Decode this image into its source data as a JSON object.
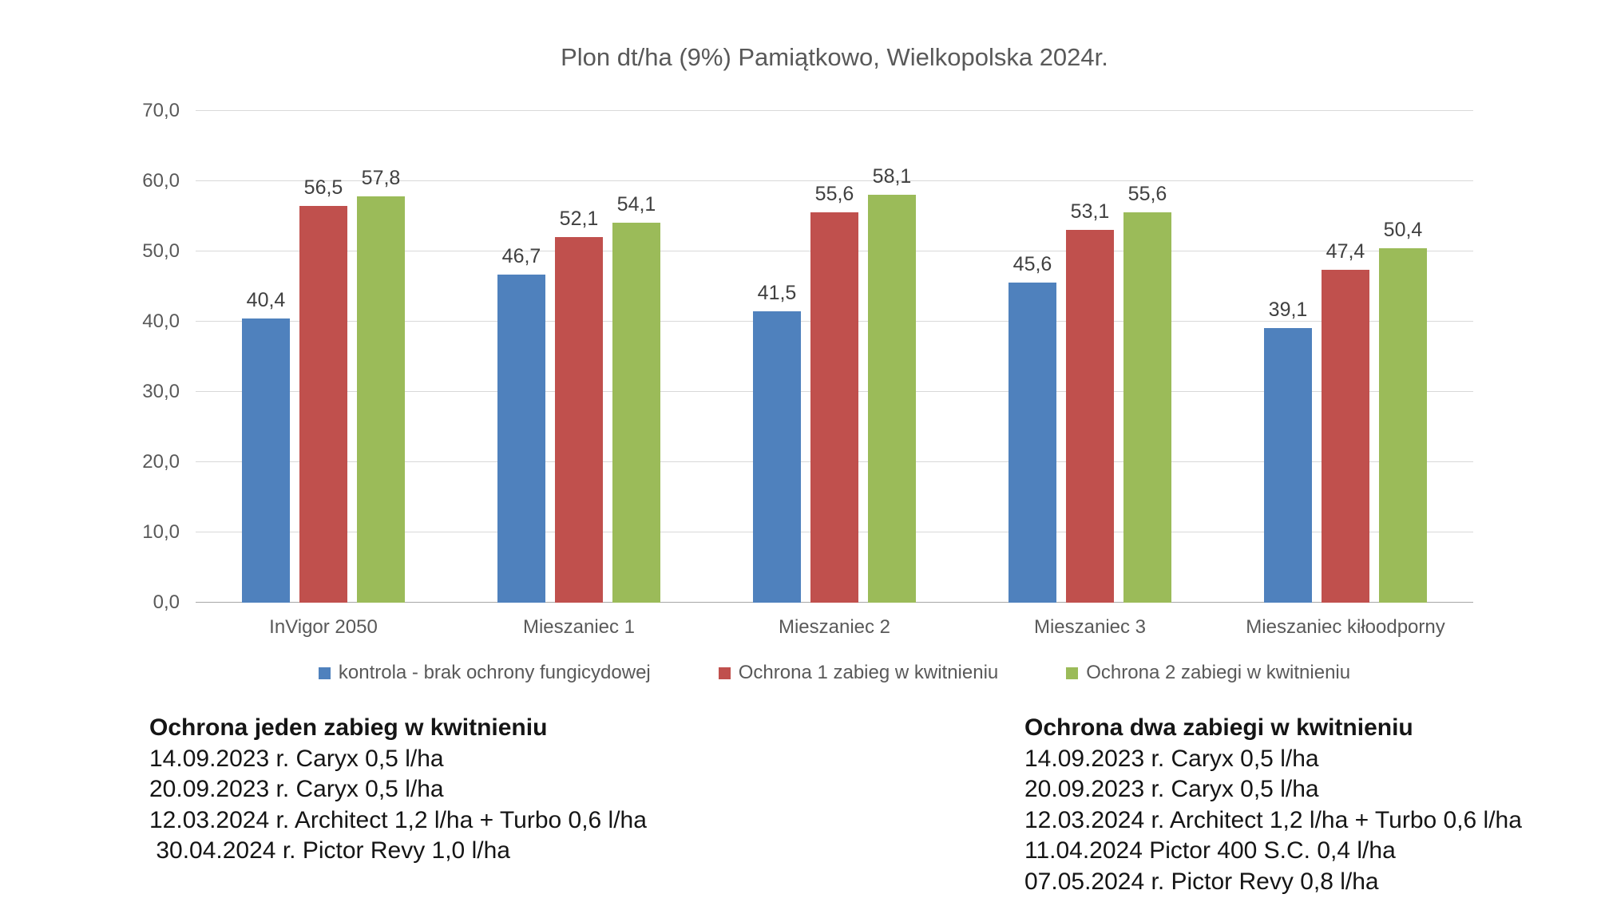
{
  "chart_data": {
    "type": "bar",
    "title": "Plon dt/ha (9%) Pamiątkowo, Wielkopolska 2024r.",
    "categories": [
      "InVigor 2050",
      "Mieszaniec 1",
      "Mieszaniec 2",
      "Mieszaniec 3",
      "Mieszaniec kiłoodporny"
    ],
    "series": [
      {
        "name": "kontrola - brak ochrony fungicydowej",
        "color": "#4F81BD",
        "values": [
          40.4,
          46.7,
          41.5,
          45.6,
          39.1
        ]
      },
      {
        "name": "Ochrona 1 zabieg w kwitnieniu",
        "color": "#C0504D",
        "values": [
          56.5,
          52.1,
          55.6,
          53.1,
          47.4
        ]
      },
      {
        "name": "Ochrona 2 zabiegi w kwitnieniu",
        "color": "#9BBB59",
        "values": [
          57.8,
          54.1,
          58.1,
          55.6,
          50.4
        ]
      }
    ],
    "ylim": [
      0,
      70
    ],
    "yticks": [
      0,
      10,
      20,
      30,
      40,
      50,
      60,
      70
    ],
    "decimal_separator": ",",
    "grid": true,
    "legend_position": "bottom",
    "xlabel": "",
    "ylabel": ""
  },
  "notes": [
    {
      "title": "Ochrona jeden zabieg w kwitnieniu",
      "lines": [
        "14.09.2023 r. Caryx 0,5 l/ha",
        "20.09.2023 r. Caryx 0,5 l/ha",
        "12.03.2024 r. Architect 1,2 l/ha + Turbo 0,6 l/ha",
        " 30.04.2024 r. Pictor Revy 1,0 l/ha"
      ]
    },
    {
      "title": "Ochrona dwa zabiegi w kwitnieniu",
      "lines": [
        "14.09.2023 r. Caryx 0,5 l/ha",
        "20.09.2023 r. Caryx 0,5 l/ha",
        "12.03.2024 r. Architect 1,2 l/ha + Turbo 0,6 l/ha",
        "11.04.2024 Pictor 400 S.C. 0,4 l/ha",
        "07.05.2024 r. Pictor Revy 0,8 l/ha"
      ]
    }
  ]
}
